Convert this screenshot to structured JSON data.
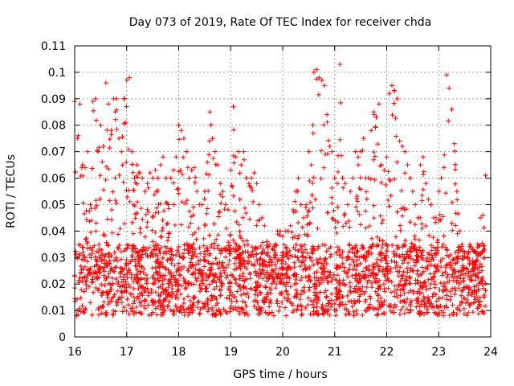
{
  "chart_data": {
    "type": "scatter",
    "title": "Day 073 of 2019, Rate Of TEC Index for receiver chda",
    "xlabel": "GPS time / hours",
    "ylabel": "ROTI / TECUs",
    "xlim": [
      16,
      24
    ],
    "ylim": [
      0,
      0.11
    ],
    "xticks": [
      16,
      17,
      18,
      19,
      20,
      21,
      22,
      23,
      24
    ],
    "xtick_labels": [
      "16",
      "17",
      "18",
      "19",
      "20",
      "21",
      "22",
      "23",
      "24"
    ],
    "yticks": [
      0,
      0.01,
      0.02,
      0.03,
      0.04,
      0.05,
      0.06,
      0.07,
      0.08,
      0.09,
      0.1,
      0.11
    ],
    "ytick_labels": [
      "0",
      "0.01",
      "0.02",
      "0.03",
      "0.04",
      "0.05",
      "0.06",
      "0.07",
      "0.08",
      "0.09",
      "0.1",
      "0.11"
    ],
    "grid": true,
    "marker": "+",
    "series_color": "#ff0000",
    "series": [
      {
        "name": "ROTI",
        "x": [
          16.0,
          16.05,
          16.1,
          16.15,
          16.2,
          16.25,
          16.3,
          16.35,
          16.4,
          16.45,
          16.5,
          16.55,
          16.6,
          16.65,
          16.7,
          16.75,
          16.8,
          16.85,
          16.9,
          16.95,
          17.0,
          17.05,
          17.1,
          17.15,
          17.2,
          17.25,
          17.3,
          17.35,
          17.4,
          17.45,
          17.5,
          17.55,
          17.6,
          17.65,
          17.7,
          17.75,
          17.8,
          17.85,
          17.9,
          17.95,
          18.0,
          18.05,
          18.1,
          18.15,
          18.2,
          18.25,
          18.3,
          18.35,
          18.4,
          18.45,
          18.5,
          18.55,
          18.6,
          18.65,
          18.7,
          18.75,
          18.8,
          18.85,
          18.9,
          18.95,
          19.0,
          19.05,
          19.1,
          19.15,
          19.2,
          19.25,
          19.3,
          19.35,
          19.4,
          19.45,
          19.5,
          19.55,
          19.6,
          19.65,
          19.7,
          19.75,
          19.8,
          19.85,
          19.9,
          19.95,
          20.0,
          20.05,
          20.1,
          20.15,
          20.2,
          20.25,
          20.3,
          20.35,
          20.4,
          20.45,
          20.5,
          20.55,
          20.6,
          20.65,
          20.7,
          20.75,
          20.8,
          20.85,
          20.9,
          20.95,
          21.0,
          21.05,
          21.1,
          21.15,
          21.2,
          21.25,
          21.3,
          21.35,
          21.4,
          21.45,
          21.5,
          21.55,
          21.6,
          21.65,
          21.7,
          21.75,
          21.8,
          21.85,
          21.9,
          21.95,
          22.0,
          22.05,
          22.1,
          22.15,
          22.2,
          22.25,
          22.3,
          22.35,
          22.4,
          22.45,
          22.5,
          22.55,
          22.6,
          22.65,
          22.7,
          22.75,
          22.8,
          22.85,
          22.9,
          22.95,
          23.0,
          23.05,
          23.1,
          23.15,
          23.2,
          23.25,
          23.3,
          23.35,
          23.4,
          23.45,
          23.5,
          23.55,
          23.6,
          23.65,
          23.7,
          23.75,
          23.8,
          23.85,
          23.9,
          23.95,
          24.0
        ],
        "y_max": [
          0.089,
          0.075,
          0.088,
          0.065,
          0.064,
          0.07,
          0.05,
          0.089,
          0.09,
          0.07,
          0.08,
          0.072,
          0.096,
          0.088,
          0.078,
          0.09,
          0.09,
          0.075,
          0.07,
          0.09,
          0.097,
          0.098,
          0.07,
          0.06,
          0.065,
          0.062,
          0.06,
          0.055,
          0.058,
          0.062,
          0.06,
          0.063,
          0.06,
          0.065,
          0.068,
          0.06,
          0.05,
          0.06,
          0.063,
          0.068,
          0.08,
          0.078,
          0.075,
          0.07,
          0.06,
          0.063,
          0.064,
          0.055,
          0.05,
          0.05,
          0.055,
          0.066,
          0.085,
          0.075,
          0.07,
          0.065,
          0.058,
          0.055,
          0.05,
          0.048,
          0.063,
          0.087,
          0.068,
          0.07,
          0.065,
          0.07,
          0.06,
          0.058,
          0.06,
          0.062,
          0.058,
          0.05,
          0.045,
          0.042,
          0.036,
          0.035,
          0.033,
          0.035,
          0.04,
          0.04,
          0.038,
          0.04,
          0.04,
          0.042,
          0.048,
          0.055,
          0.06,
          0.05,
          0.045,
          0.05,
          0.07,
          0.065,
          0.1,
          0.101,
          0.098,
          0.097,
          0.095,
          0.084,
          0.072,
          0.07,
          0.06,
          0.058,
          0.103,
          0.06,
          0.058,
          0.05,
          0.055,
          0.06,
          0.07,
          0.068,
          0.07,
          0.075,
          0.06,
          0.06,
          0.078,
          0.085,
          0.083,
          0.088,
          0.065,
          0.063,
          0.068,
          0.092,
          0.095,
          0.093,
          0.09,
          0.074,
          0.072,
          0.07,
          0.065,
          0.06,
          0.055,
          0.05,
          0.045,
          0.065,
          0.068,
          0.058,
          0.052,
          0.05,
          0.045,
          0.045,
          0.055,
          0.06,
          0.064,
          0.099,
          0.094,
          0.086,
          0.073,
          0.055,
          0.04,
          0.035,
          0.032,
          0.03,
          0.035,
          0.033,
          0.032,
          0.035,
          0.045,
          0.046,
          0.061
        ]
      }
    ]
  }
}
